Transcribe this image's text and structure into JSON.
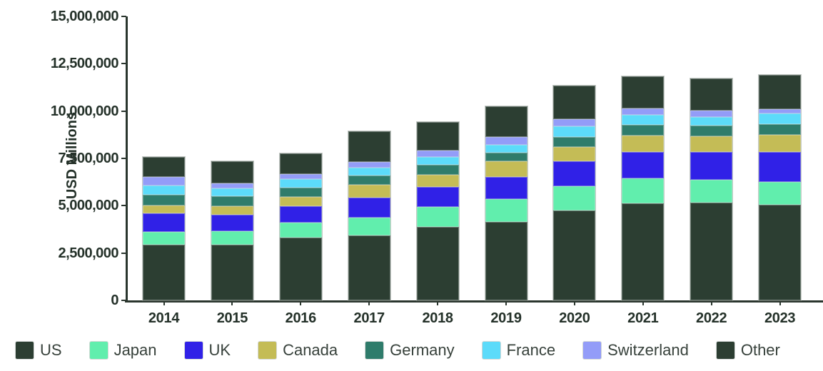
{
  "chart": {
    "ylabel": "USD Millions",
    "y_tick_labels": [
      "15,000,000",
      "12,500,000",
      "10,000,000",
      "7,500,000",
      "5,000,000",
      "2,500,000",
      "0"
    ],
    "colors": {
      "axis": "#2A362E",
      "axis_text": "#243129",
      "legend_text": "#37413B",
      "background": "#FFFFFF"
    }
  },
  "chart_data": {
    "type": "bar",
    "stacked": true,
    "title": "",
    "xlabel": "",
    "ylabel": "USD Millions",
    "ylim": [
      0,
      15000000
    ],
    "ytick_interval": 2500000,
    "grid": false,
    "legend_position": "bottom",
    "units": "USD Millions",
    "categories": [
      "2014",
      "2015",
      "2016",
      "2017",
      "2018",
      "2019",
      "2020",
      "2021",
      "2022",
      "2023"
    ],
    "series": [
      {
        "name": "US",
        "color": "#2C3E32",
        "values": [
          2930000,
          2950000,
          3310000,
          3440000,
          3880000,
          4150000,
          4740000,
          5110000,
          5150000,
          5060000
        ]
      },
      {
        "name": "Japan",
        "color": "#61EEAD",
        "values": [
          690000,
          690000,
          790000,
          950000,
          1070000,
          1190000,
          1280000,
          1320000,
          1230000,
          1200000
        ]
      },
      {
        "name": "UK",
        "color": "#3021E7",
        "values": [
          980000,
          880000,
          880000,
          1050000,
          1060000,
          1190000,
          1320000,
          1420000,
          1450000,
          1570000
        ]
      },
      {
        "name": "Canada",
        "color": "#C4BC56",
        "values": [
          430000,
          470000,
          500000,
          670000,
          620000,
          820000,
          750000,
          840000,
          840000,
          930000
        ]
      },
      {
        "name": "Germany",
        "color": "#2F7C6B",
        "values": [
          540000,
          500000,
          460000,
          500000,
          530000,
          440000,
          560000,
          580000,
          560000,
          560000
        ]
      },
      {
        "name": "France",
        "color": "#5CDBFA",
        "values": [
          480000,
          410000,
          450000,
          410000,
          430000,
          430000,
          530000,
          530000,
          440000,
          540000
        ]
      },
      {
        "name": "Switzerland",
        "color": "#939CF8",
        "values": [
          460000,
          300000,
          300000,
          300000,
          320000,
          430000,
          410000,
          340000,
          340000,
          250000
        ]
      },
      {
        "name": "Other",
        "color": "#2C3E32",
        "values": [
          1070000,
          1160000,
          1070000,
          1610000,
          1520000,
          1600000,
          1760000,
          1690000,
          1710000,
          1820000
        ]
      }
    ],
    "totals": [
      7580000,
      7360000,
      7760000,
      8930000,
      9430000,
      10250000,
      11350000,
      11830000,
      11720000,
      11930000
    ]
  }
}
